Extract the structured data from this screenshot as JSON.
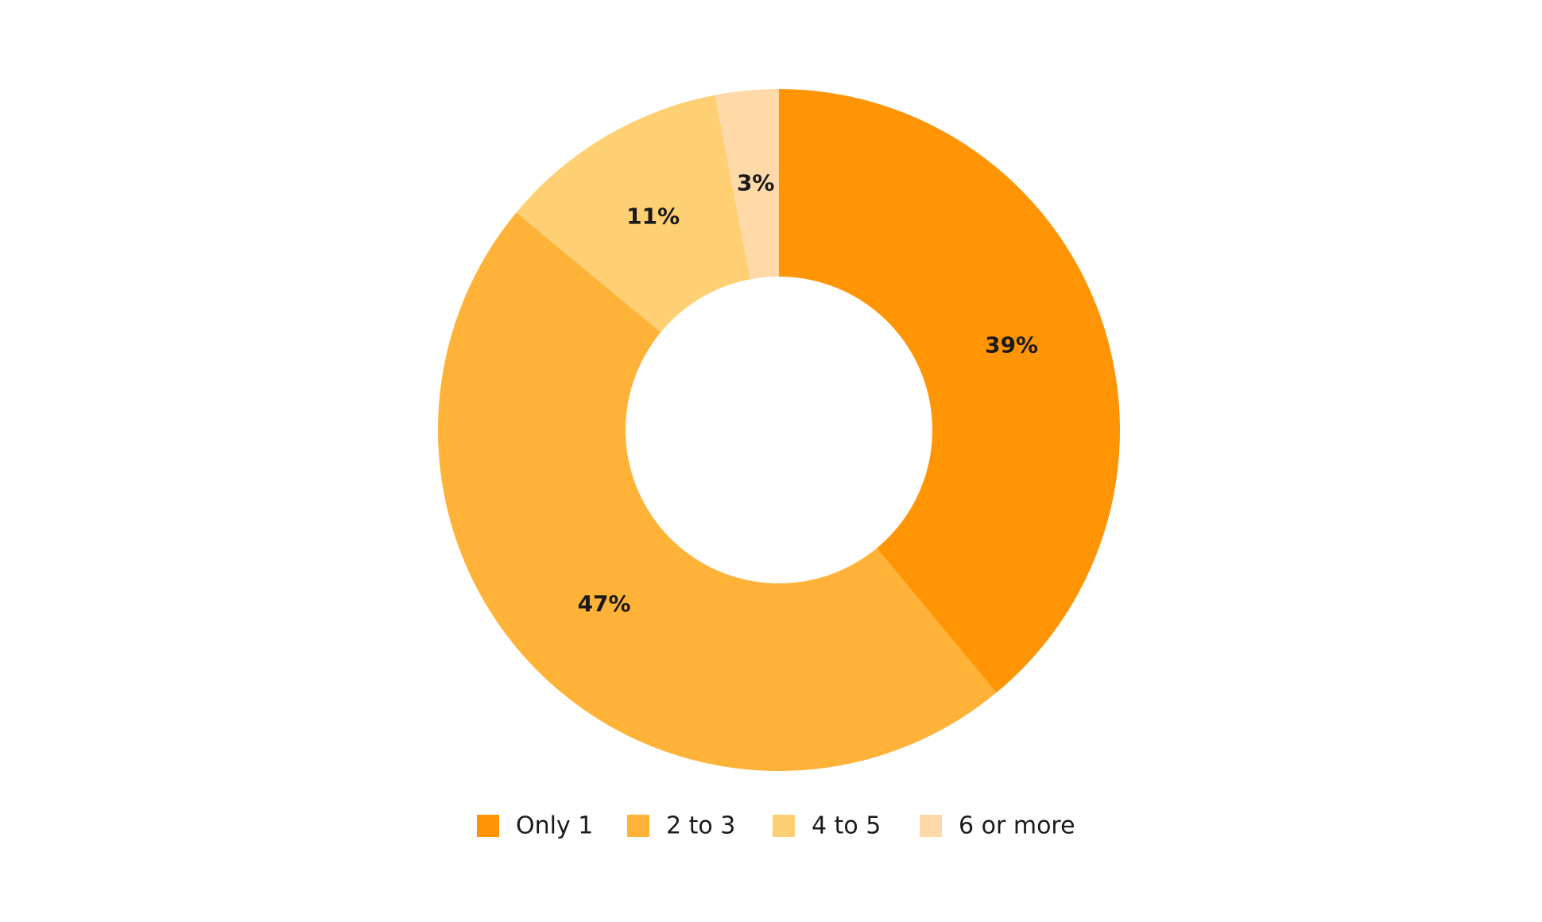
{
  "chart_data": {
    "type": "donut",
    "categories": [
      "Only 1",
      "2 to 3",
      "4 to 5",
      "6 or more"
    ],
    "values": [
      39,
      47,
      11,
      3
    ],
    "value_labels": [
      "39%",
      "47%",
      "11%",
      "3%"
    ],
    "colors": [
      "#ff9505",
      "#ffb238",
      "#ffcf73",
      "#ffd9a8"
    ],
    "legend": "bottom"
  }
}
